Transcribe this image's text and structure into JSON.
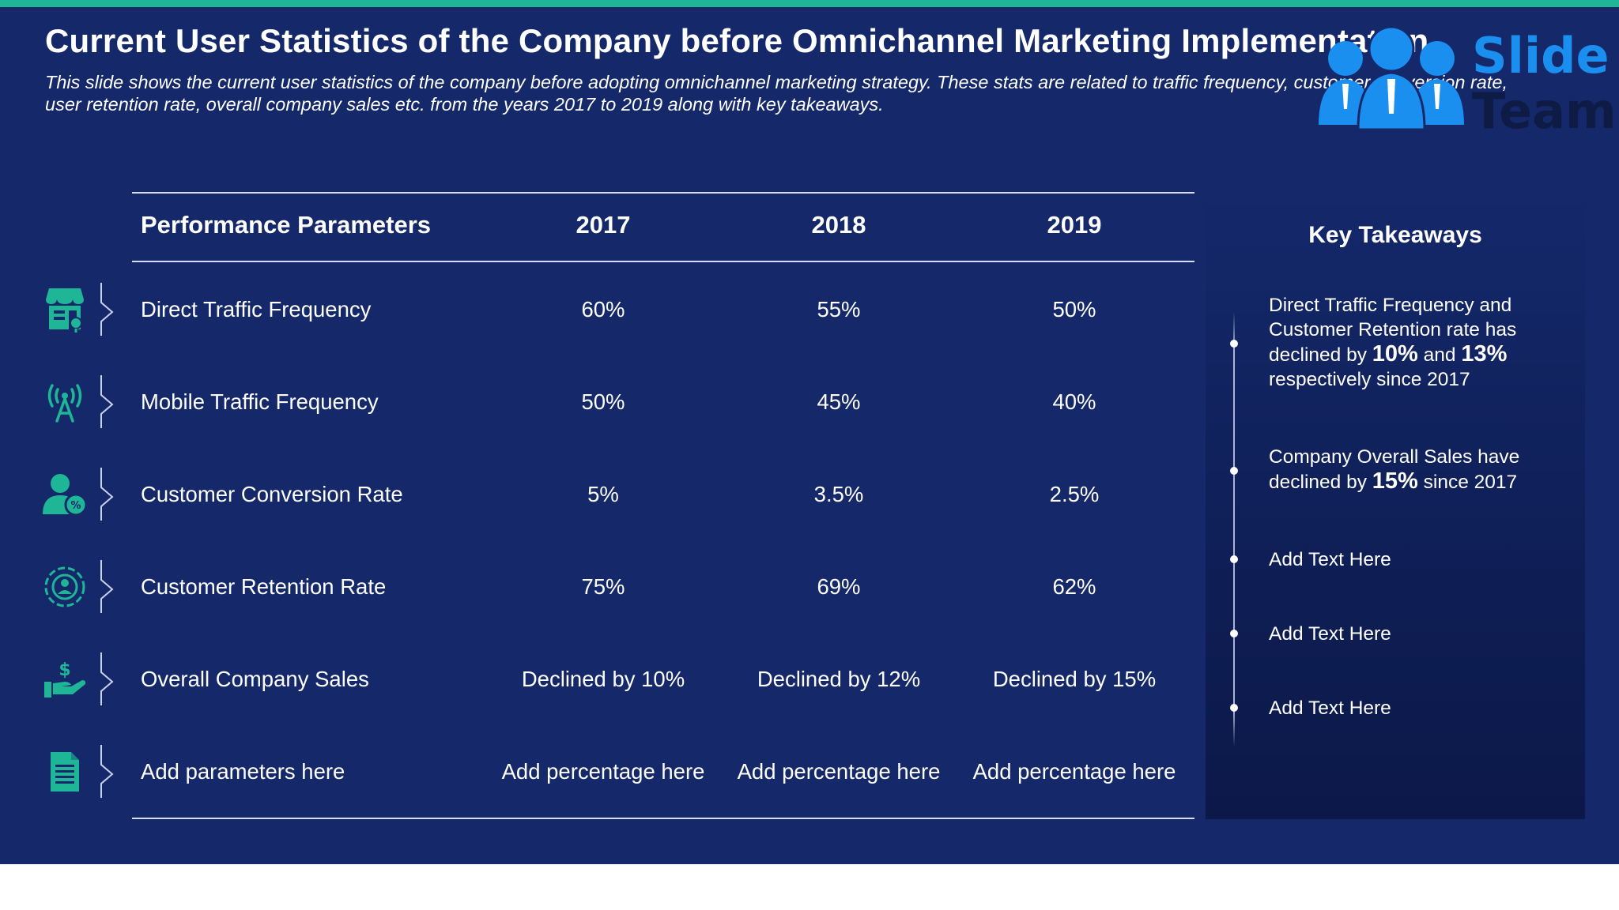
{
  "title": "Current User Statistics of the Company before Omnichannel Marketing Implementation",
  "subtitle": "This slide shows the current user statistics of the company before adopting omnichannel marketing strategy. These stats are related to traffic frequency, customer conversion rate, user retention rate, overall company sales etc. from the years 2017 to 2019 along with key takeaways.",
  "logo": {
    "line1": "Slide",
    "line2": "Team",
    "icon": "team-people-icon"
  },
  "colors": {
    "background": "#14286a",
    "accent": "#1fb597",
    "logo_blue": "#1a8ff0"
  },
  "table": {
    "headers": [
      "Performance Parameters",
      "2017",
      "2018",
      "2019"
    ],
    "rows": [
      {
        "icon": "store-icon",
        "label": "Direct Traffic Frequency",
        "values": [
          "60%",
          "55%",
          "50%"
        ]
      },
      {
        "icon": "antenna-signal-icon",
        "label": "Mobile Traffic Frequency",
        "values": [
          "50%",
          "45%",
          "40%"
        ]
      },
      {
        "icon": "user-percent-icon",
        "label": "Customer Conversion Rate",
        "values": [
          "5%",
          "3.5%",
          "2.5%"
        ]
      },
      {
        "icon": "retention-cycle-icon",
        "label": "Customer Retention Rate",
        "values": [
          "75%",
          "69%",
          "62%"
        ]
      },
      {
        "icon": "hand-dollar-icon",
        "label": "Overall Company Sales",
        "values": [
          "Declined by 10%",
          "Declined by 12%",
          "Declined by 15%"
        ]
      },
      {
        "icon": "document-icon",
        "label": "Add parameters here",
        "values": [
          "Add percentage here",
          "Add percentage here",
          "Add percentage here"
        ]
      }
    ]
  },
  "takeaways": {
    "title": "Key Takeaways",
    "item1": {
      "pre": "Direct Traffic Frequency and Customer Retention rate has declined by ",
      "v1": "10%",
      "mid": " and ",
      "v2": "13%",
      "post": " respectively since 2017"
    },
    "item2": {
      "pre": "Company Overall Sales have declined by ",
      "v1": "15%",
      "post": " since 2017"
    },
    "placeholders": [
      "Add Text Here",
      "Add Text Here",
      "Add Text Here"
    ]
  }
}
